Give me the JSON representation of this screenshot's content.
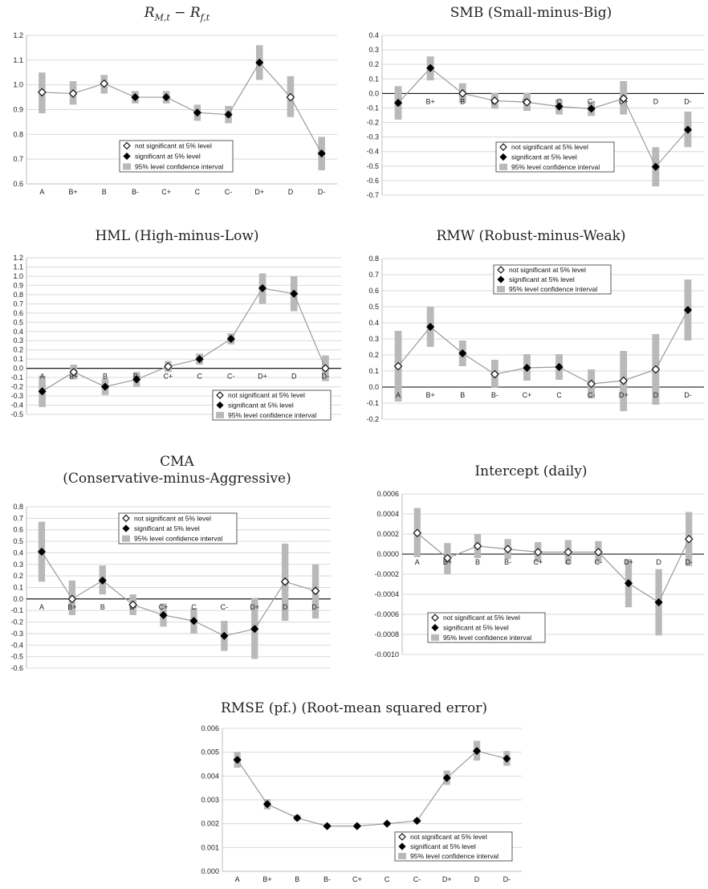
{
  "legend": {
    "items": [
      {
        "label": "not significant at 5% level",
        "marker": "diamond-open"
      },
      {
        "label": "significant at 5% level",
        "marker": "diamond-filled"
      },
      {
        "label": "95% level confidence interval",
        "marker": "bar-gray"
      }
    ]
  },
  "colors": {
    "ci_bar": "#b9b9b9",
    "line": "#9a9a9a",
    "grid": "#d9d9d9",
    "axis_zero": "#000000",
    "marker_fill": "#000000",
    "marker_open": "#ffffff"
  },
  "chart_data": [
    {
      "id": "mkt",
      "type": "line",
      "title": "R_{M,t} − R_{f,t}",
      "categories": [
        "A",
        "B+",
        "B",
        "B-",
        "C+",
        "C",
        "C-",
        "D+",
        "D",
        "D-"
      ],
      "values": [
        0.97,
        0.965,
        1.005,
        0.95,
        0.95,
        0.888,
        0.88,
        1.09,
        0.95,
        0.723
      ],
      "ci_low": [
        0.885,
        0.92,
        0.965,
        0.925,
        0.925,
        0.855,
        0.845,
        1.02,
        0.87,
        0.655
      ],
      "ci_high": [
        1.05,
        1.015,
        1.04,
        0.975,
        0.975,
        0.92,
        0.915,
        1.16,
        1.035,
        0.79
      ],
      "significant": [
        false,
        false,
        false,
        true,
        true,
        true,
        true,
        true,
        false,
        true
      ],
      "ylim": [
        0.6,
        1.2
      ],
      "yticks": [
        "0.6",
        "0.7",
        "0.8",
        "0.9",
        "1.0",
        "1.1",
        "1.2"
      ],
      "zero_line": false,
      "grid": true,
      "legend_position": "center-right"
    },
    {
      "id": "smb",
      "type": "line",
      "title": "SMB (Small-minus-Big)",
      "categories": [
        "A",
        "B+",
        "B",
        "B-",
        "C+",
        "C",
        "C-",
        "D+",
        "D",
        "D-"
      ],
      "values": [
        -0.065,
        0.175,
        0.0,
        -0.05,
        -0.06,
        -0.09,
        -0.105,
        -0.035,
        -0.505,
        -0.25
      ],
      "ci_low": [
        -0.18,
        0.09,
        -0.065,
        -0.105,
        -0.12,
        -0.145,
        -0.155,
        -0.145,
        -0.64,
        -0.37
      ],
      "ci_high": [
        0.05,
        0.255,
        0.07,
        0.005,
        0.005,
        -0.04,
        -0.055,
        0.085,
        -0.37,
        -0.125
      ],
      "significant": [
        true,
        true,
        false,
        false,
        false,
        true,
        true,
        false,
        true,
        true
      ],
      "ylim": [
        -0.7,
        0.4
      ],
      "yticks": [
        "-0.7",
        "-0.6",
        "-0.5",
        "-0.4",
        "-0.3",
        "-0.2",
        "-0.1",
        "0.0",
        "0.1",
        "0.2",
        "0.3",
        "0.4"
      ],
      "zero_line": true,
      "grid": true,
      "legend_position": "center-right"
    },
    {
      "id": "hml",
      "type": "line",
      "title": "HML (High-minus-Low)",
      "categories": [
        "A",
        "B+",
        "B",
        "B-",
        "C+",
        "C",
        "C-",
        "D+",
        "D",
        "D-"
      ],
      "values": [
        -0.25,
        -0.04,
        -0.2,
        -0.12,
        0.02,
        0.1,
        0.32,
        0.87,
        0.81,
        0.0
      ],
      "ci_low": [
        -0.42,
        -0.12,
        -0.29,
        -0.2,
        -0.04,
        0.04,
        0.26,
        0.7,
        0.62,
        -0.14
      ],
      "ci_high": [
        -0.08,
        0.04,
        -0.11,
        -0.04,
        0.08,
        0.16,
        0.38,
        1.03,
        1.0,
        0.14
      ],
      "significant": [
        true,
        false,
        true,
        true,
        false,
        true,
        true,
        true,
        true,
        false
      ],
      "ylim": [
        -0.5,
        1.2
      ],
      "yticks": [
        "-0.5",
        "-0.4",
        "-0.3",
        "-0.2",
        "-0.1",
        "0.0",
        "0.1",
        "0.2",
        "0.3",
        "0.4",
        "0.5",
        "0.6",
        "0.7",
        "0.8",
        "0.9",
        "1.0",
        "1.1",
        "1.2"
      ],
      "zero_line": true,
      "grid": true,
      "legend_position": "bottom-right"
    },
    {
      "id": "rmw",
      "type": "line",
      "title": "RMW (Robust-minus-Weak)",
      "categories": [
        "A",
        "B+",
        "B",
        "B-",
        "C+",
        "C",
        "C-",
        "D+",
        "D",
        "D-"
      ],
      "values": [
        0.13,
        0.375,
        0.21,
        0.08,
        0.12,
        0.125,
        0.02,
        0.04,
        0.11,
        0.48
      ],
      "ci_low": [
        -0.09,
        0.25,
        0.13,
        -0.005,
        0.04,
        0.045,
        -0.07,
        -0.15,
        -0.11,
        0.29
      ],
      "ci_high": [
        0.35,
        0.5,
        0.29,
        0.17,
        0.205,
        0.205,
        0.11,
        0.225,
        0.33,
        0.67
      ],
      "significant": [
        false,
        true,
        true,
        false,
        true,
        true,
        false,
        false,
        false,
        true
      ],
      "ylim": [
        -0.2,
        0.8
      ],
      "yticks": [
        "-0.2",
        "-0.1",
        "0.0",
        "0.1",
        "0.2",
        "0.3",
        "0.4",
        "0.5",
        "0.6",
        "0.7",
        "0.8"
      ],
      "zero_line": true,
      "grid": true,
      "legend_position": "top-center"
    },
    {
      "id": "cma",
      "type": "line",
      "title": "CMA (Conservative-minus-Aggressive)",
      "title_lines": [
        "CMA",
        "(Conservative-minus-Aggressive)"
      ],
      "categories": [
        "A",
        "B+",
        "B",
        "B-",
        "C+",
        "C",
        "C-",
        "D+",
        "D",
        "D-"
      ],
      "values": [
        0.41,
        0.0,
        0.16,
        -0.05,
        -0.14,
        -0.19,
        -0.32,
        -0.26,
        0.15,
        0.07
      ],
      "ci_low": [
        0.15,
        -0.14,
        0.04,
        -0.14,
        -0.24,
        -0.3,
        -0.45,
        -0.52,
        -0.19,
        -0.17
      ],
      "ci_high": [
        0.67,
        0.16,
        0.29,
        0.04,
        -0.04,
        -0.08,
        -0.19,
        0.01,
        0.48,
        0.3
      ],
      "significant": [
        true,
        false,
        true,
        false,
        true,
        true,
        true,
        true,
        false,
        false
      ],
      "ylim": [
        -0.6,
        0.8
      ],
      "yticks": [
        "-0.6",
        "-0.5",
        "-0.4",
        "-0.3",
        "-0.2",
        "-0.1",
        "0.0",
        "0.1",
        "0.2",
        "0.3",
        "0.4",
        "0.5",
        "0.6",
        "0.7",
        "0.8"
      ],
      "zero_line": true,
      "grid": true,
      "legend_position": "top-right"
    },
    {
      "id": "intercept",
      "type": "line",
      "title": "Intercept (daily)",
      "categories": [
        "A",
        "B+",
        "B",
        "B-",
        "C+",
        "C",
        "C-",
        "D+",
        "D",
        "D-"
      ],
      "values": [
        0.00021,
        -4e-05,
        8e-05,
        5e-05,
        2e-05,
        2e-05,
        2e-05,
        -0.00029,
        -0.00048,
        0.00015
      ],
      "ci_low": [
        -3e-05,
        -0.0002,
        -4e-05,
        -5e-05,
        -8e-05,
        -0.0001,
        -9e-05,
        -0.00053,
        -0.00081,
        -0.00012
      ],
      "ci_high": [
        0.00046,
        0.00011,
        0.0002,
        0.00015,
        0.00012,
        0.00014,
        0.00013,
        -5e-05,
        -0.00015,
        0.00042
      ],
      "significant": [
        false,
        false,
        false,
        false,
        false,
        false,
        false,
        true,
        true,
        false
      ],
      "ylim": [
        -0.001,
        0.0006
      ],
      "yticks": [
        "-0.0010",
        "-0.0008",
        "-0.0006",
        "-0.0004",
        "-0.0002",
        "0.0000",
        "0.0002",
        "0.0004",
        "0.0006"
      ],
      "zero_line": true,
      "grid": true,
      "legend_position": "bottom-center"
    },
    {
      "id": "rmse",
      "type": "line",
      "title": "RMSE (pf.) (Root-mean squared error)",
      "categories": [
        "A",
        "B+",
        "B",
        "B-",
        "C+",
        "C",
        "C-",
        "D+",
        "D",
        "D-"
      ],
      "values": [
        0.00468,
        0.00282,
        0.00224,
        0.0019,
        0.0019,
        0.002,
        0.00212,
        0.00392,
        0.00505,
        0.00473
      ],
      "ci_low": [
        0.00435,
        0.0026,
        0.00212,
        0.00183,
        0.00183,
        0.00193,
        0.00203,
        0.00363,
        0.00465,
        0.00443
      ],
      "ci_high": [
        0.00502,
        0.00303,
        0.00237,
        0.00197,
        0.00197,
        0.00208,
        0.00222,
        0.00423,
        0.00548,
        0.00505
      ],
      "significant": [
        true,
        true,
        true,
        true,
        true,
        true,
        true,
        true,
        true,
        true
      ],
      "ylim": [
        0.0,
        0.006
      ],
      "yticks": [
        "0.000",
        "0.001",
        "0.002",
        "0.003",
        "0.004",
        "0.005",
        "0.006"
      ],
      "zero_line": false,
      "grid": true,
      "legend_position": "bottom-right"
    }
  ]
}
